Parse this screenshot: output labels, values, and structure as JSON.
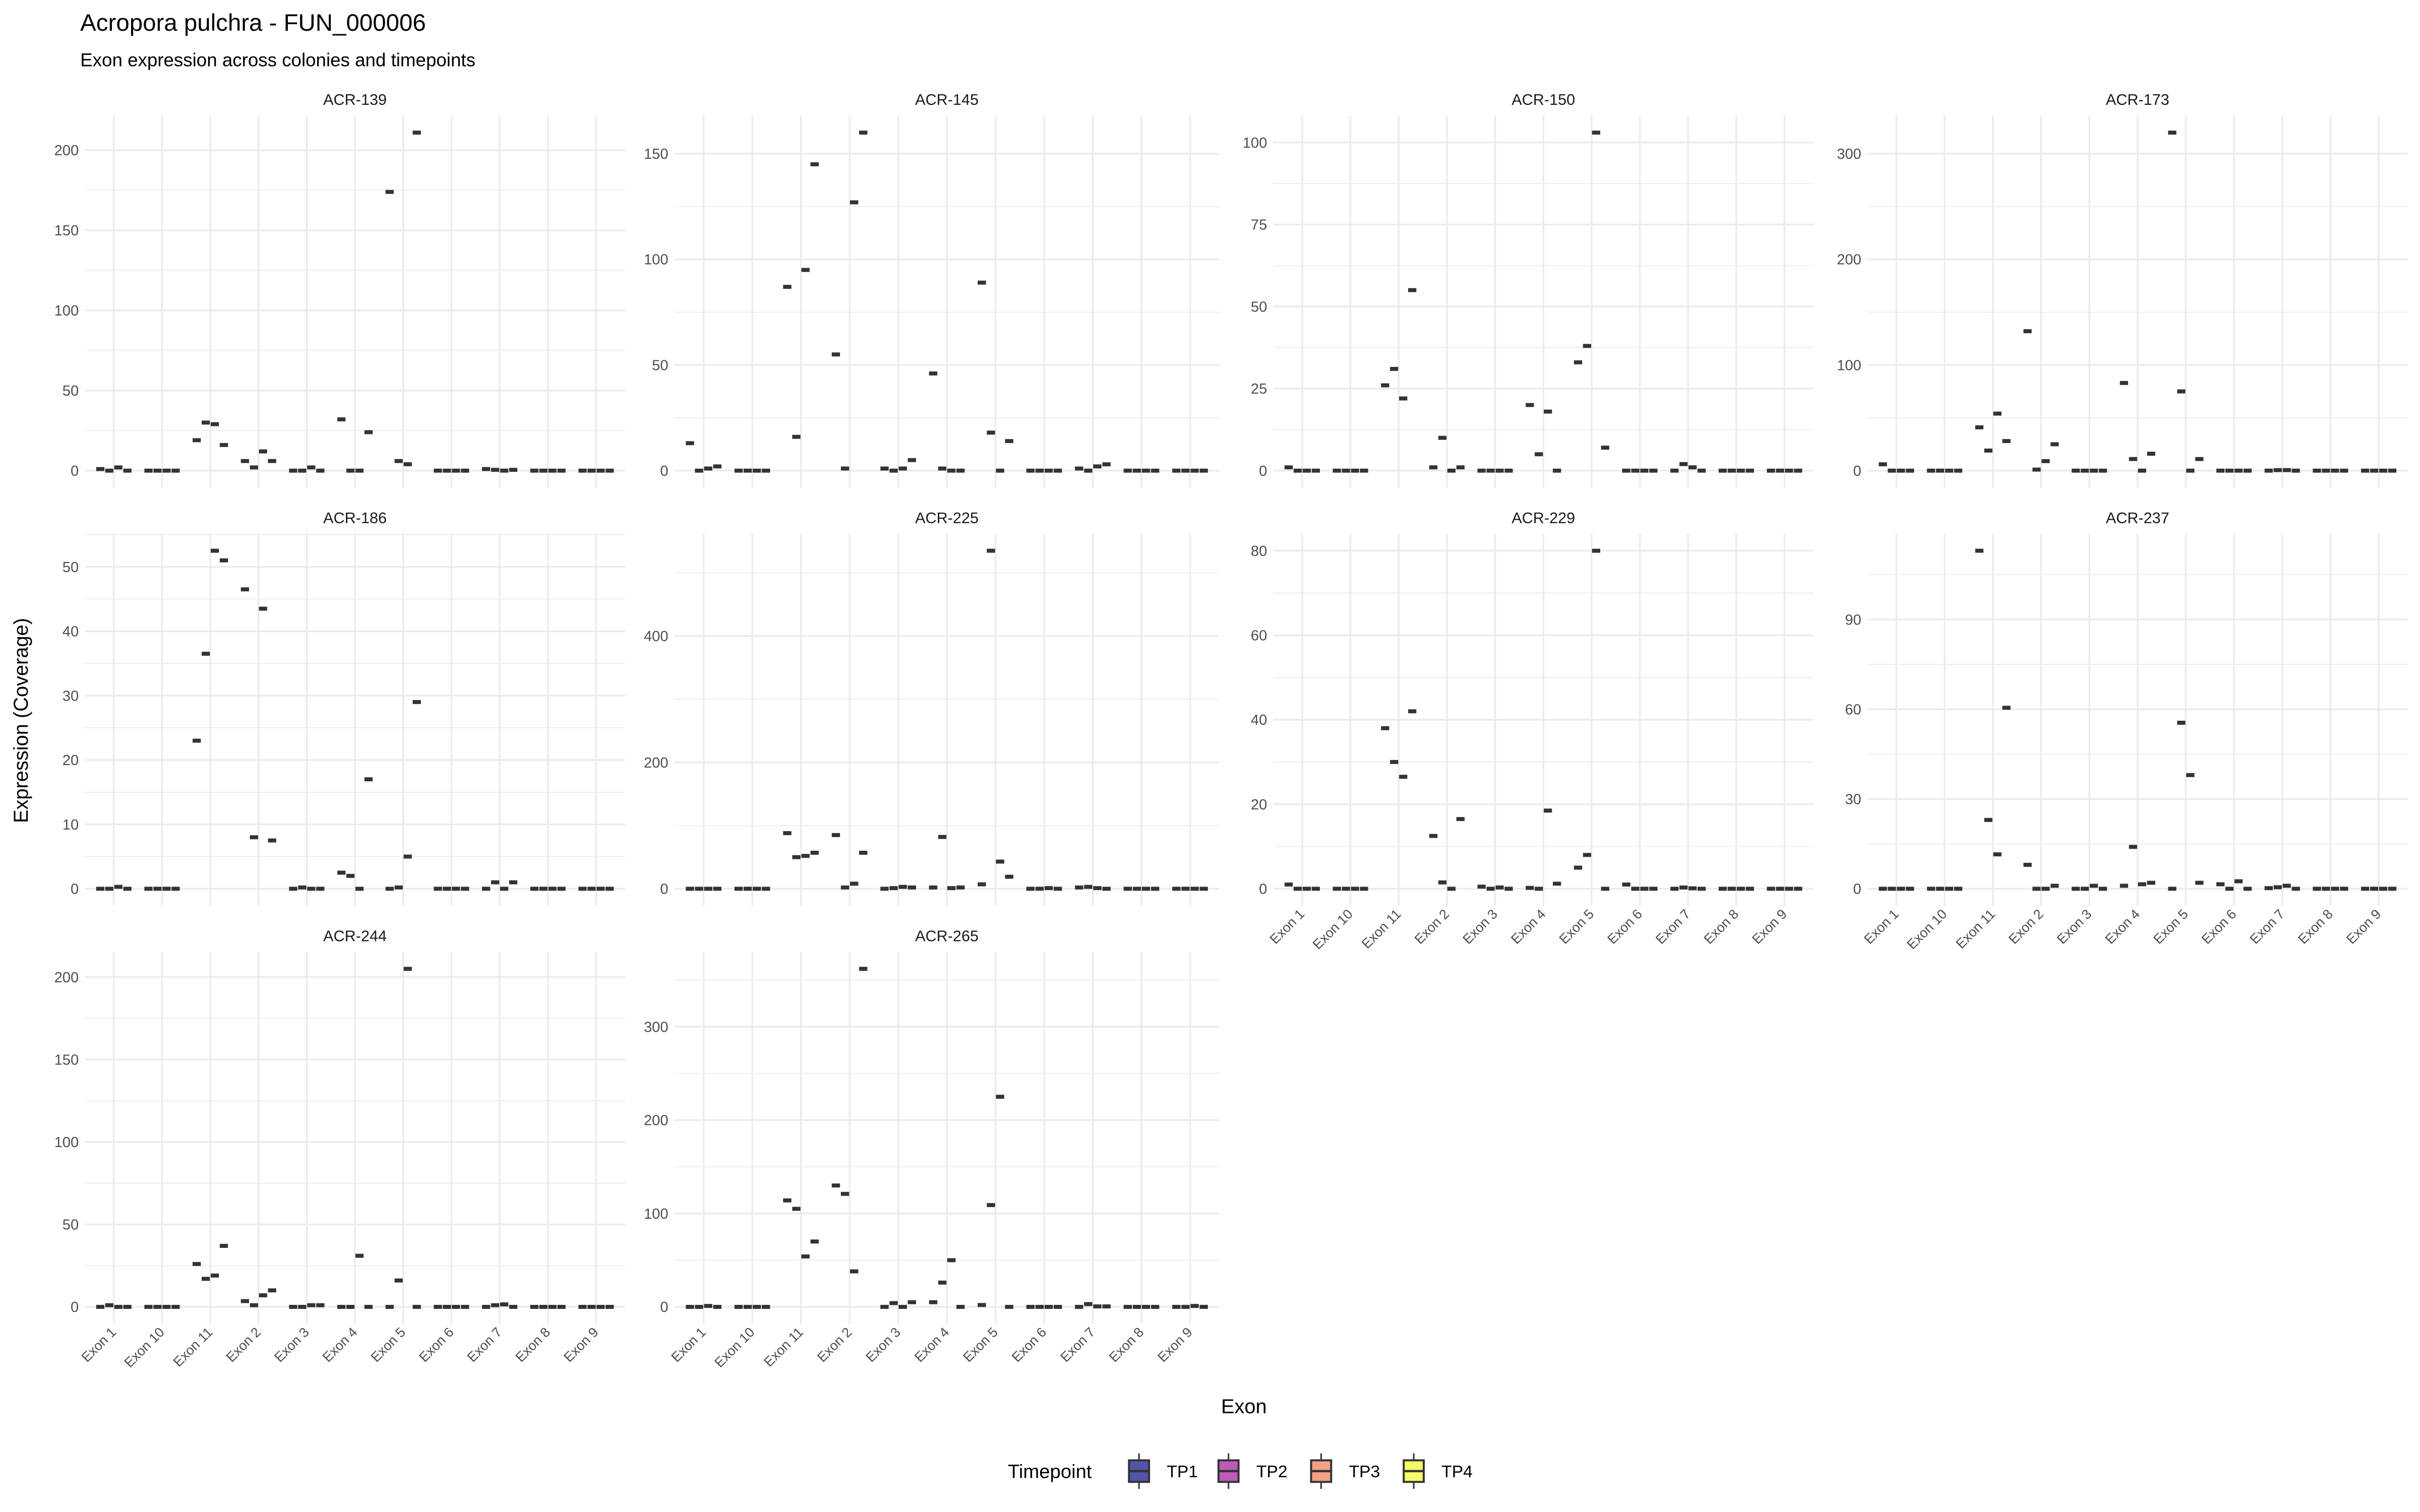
{
  "chart_data": {
    "type": "boxplot",
    "title": "Acropora pulchra - FUN_000006",
    "subtitle": "Exon expression across colonies and timepoints",
    "xlabel": "Exon",
    "ylabel": "Expression (Coverage)",
    "categories": [
      "Exon 1",
      "Exon 10",
      "Exon 11",
      "Exon 2",
      "Exon 3",
      "Exon 4",
      "Exon 5",
      "Exon 6",
      "Exon 7",
      "Exon 8",
      "Exon 9"
    ],
    "legend": {
      "title": "Timepoint",
      "placement": "bottom",
      "entries": [
        "TP1",
        "TP2",
        "TP3",
        "TP4"
      ],
      "colors": [
        "#5254a8",
        "#bc5cb8",
        "#f2a185",
        "#f5fb68"
      ]
    },
    "grid": true,
    "values_layout": "each panel: values[exon][timepoint TP1..TP4]",
    "panels": [
      {
        "name": "ACR-139",
        "ylim": [
          0,
          211
        ],
        "yticks": [
          "0",
          "50",
          "100",
          "150",
          "200"
        ],
        "ytick_values": [
          0,
          50,
          100,
          150,
          200
        ],
        "values": [
          [
            1,
            0,
            2,
            0
          ],
          [
            0,
            0,
            0,
            0
          ],
          [
            19,
            30,
            29,
            16
          ],
          [
            6,
            2,
            12,
            6
          ],
          [
            0,
            0,
            2,
            0
          ],
          [
            32,
            0,
            0,
            24
          ],
          [
            174,
            6,
            4,
            211
          ],
          [
            0,
            0,
            0,
            0
          ],
          [
            1,
            0.5,
            0,
            0.5
          ],
          [
            0,
            0,
            0,
            0
          ],
          [
            0,
            0,
            0,
            0
          ]
        ]
      },
      {
        "name": "ACR-145",
        "ylim": [
          0,
          160
        ],
        "yticks": [
          "0",
          "50",
          "100",
          "150"
        ],
        "ytick_values": [
          0,
          50,
          100,
          150
        ],
        "values": [
          [
            13,
            0,
            1,
            2
          ],
          [
            0,
            0,
            0,
            0
          ],
          [
            87,
            16,
            95,
            145
          ],
          [
            55,
            1,
            127,
            160
          ],
          [
            1,
            0,
            1,
            5
          ],
          [
            46,
            1,
            0,
            0
          ],
          [
            89,
            18,
            0,
            14
          ],
          [
            0,
            0,
            0,
            0
          ],
          [
            1,
            0,
            2,
            3
          ],
          [
            0,
            0,
            0,
            0
          ],
          [
            0,
            0,
            0,
            0
          ]
        ]
      },
      {
        "name": "ACR-150",
        "ylim": [
          0,
          103
        ],
        "yticks": [
          "0",
          "25",
          "50",
          "75",
          "100"
        ],
        "ytick_values": [
          0,
          25,
          50,
          75,
          100
        ],
        "values": [
          [
            1,
            0,
            0,
            0
          ],
          [
            0,
            0,
            0,
            0
          ],
          [
            26,
            31,
            22,
            55
          ],
          [
            1,
            10,
            0,
            1
          ],
          [
            0,
            0,
            0,
            0
          ],
          [
            20,
            5,
            18,
            0
          ],
          [
            33,
            38,
            103,
            7
          ],
          [
            0,
            0,
            0,
            0
          ],
          [
            0,
            2,
            1,
            0
          ],
          [
            0,
            0,
            0,
            0
          ],
          [
            0,
            0,
            0,
            0
          ]
        ]
      },
      {
        "name": "ACR-173",
        "ylim": [
          0,
          320
        ],
        "yticks": [
          "0",
          "100",
          "200",
          "300"
        ],
        "ytick_values": [
          0,
          100,
          200,
          300
        ],
        "values": [
          [
            6,
            0,
            0,
            0
          ],
          [
            0,
            0,
            0,
            0
          ],
          [
            41,
            19,
            54,
            28
          ],
          [
            132,
            1,
            9,
            25
          ],
          [
            0,
            0,
            0,
            0
          ],
          [
            83,
            11,
            0,
            16
          ],
          [
            320,
            75,
            0,
            11
          ],
          [
            0,
            0,
            0,
            0
          ],
          [
            0,
            0.5,
            0.5,
            0
          ],
          [
            0,
            0,
            0,
            0
          ],
          [
            0,
            0,
            0,
            0
          ]
        ]
      },
      {
        "name": "ACR-186",
        "ylim": [
          0,
          52.5
        ],
        "yticks": [
          "0",
          "10",
          "20",
          "30",
          "40",
          "50"
        ],
        "ytick_values": [
          0,
          10,
          20,
          30,
          40,
          50
        ],
        "values": [
          [
            0,
            0,
            0.3,
            0
          ],
          [
            0,
            0,
            0,
            0
          ],
          [
            23,
            36.5,
            52.5,
            51
          ],
          [
            46.5,
            8,
            43.5,
            7.5
          ],
          [
            0,
            0.2,
            0,
            0
          ],
          [
            2.5,
            2,
            0,
            17
          ],
          [
            0,
            0.2,
            5,
            29
          ],
          [
            0,
            0,
            0,
            0
          ],
          [
            0,
            1,
            0,
            1
          ],
          [
            0,
            0,
            0,
            0
          ],
          [
            0,
            0,
            0,
            0
          ]
        ]
      },
      {
        "name": "ACR-225",
        "ylim": [
          0,
          535
        ],
        "yticks": [
          "0",
          "200",
          "400"
        ],
        "ytick_values": [
          0,
          200,
          400
        ],
        "values": [
          [
            0,
            0,
            0,
            0
          ],
          [
            0,
            0,
            0,
            0
          ],
          [
            88,
            50,
            52,
            57
          ],
          [
            85,
            2,
            8,
            57
          ],
          [
            0,
            1,
            3,
            2
          ],
          [
            2,
            82,
            1,
            2
          ],
          [
            7,
            535,
            43,
            19
          ],
          [
            0,
            0,
            1,
            0
          ],
          [
            2,
            3,
            1,
            0
          ],
          [
            0,
            0,
            0,
            0
          ],
          [
            0,
            0,
            0,
            0
          ]
        ]
      },
      {
        "name": "ACR-229",
        "ylim": [
          0,
          80
        ],
        "yticks": [
          "0",
          "20",
          "40",
          "60",
          "80"
        ],
        "ytick_values": [
          0,
          20,
          40,
          60,
          80
        ],
        "values": [
          [
            1,
            0,
            0,
            0
          ],
          [
            0,
            0,
            0,
            0
          ],
          [
            38,
            30,
            26.5,
            42
          ],
          [
            12.5,
            1.5,
            0,
            16.5
          ],
          [
            0.5,
            0,
            0.3,
            0
          ],
          [
            0.2,
            0,
            18.5,
            1.2
          ],
          [
            5,
            8,
            80,
            0
          ],
          [
            1,
            0,
            0,
            0
          ],
          [
            0,
            0.3,
            0.1,
            0
          ],
          [
            0,
            0,
            0,
            0
          ],
          [
            0,
            0,
            0,
            0
          ]
        ]
      },
      {
        "name": "ACR-237",
        "ylim": [
          0,
          113
        ],
        "yticks": [
          "0",
          "30",
          "60",
          "90"
        ],
        "ytick_values": [
          0,
          30,
          60,
          90
        ],
        "values": [
          [
            0,
            0,
            0,
            0
          ],
          [
            0,
            0,
            0,
            0
          ],
          [
            113,
            23,
            11.5,
            60.5
          ],
          [
            8,
            0,
            0,
            1
          ],
          [
            0,
            0,
            1,
            0
          ],
          [
            1,
            14,
            1.5,
            2
          ],
          [
            0,
            55.5,
            38,
            2
          ],
          [
            1.5,
            0,
            2.5,
            0
          ],
          [
            0.2,
            0.5,
            1,
            0
          ],
          [
            0,
            0,
            0,
            0
          ],
          [
            0,
            0,
            0,
            0
          ]
        ]
      },
      {
        "name": "ACR-244",
        "ylim": [
          0,
          205
        ],
        "yticks": [
          "0",
          "50",
          "100",
          "150",
          "200"
        ],
        "ytick_values": [
          0,
          50,
          100,
          150,
          200
        ],
        "values": [
          [
            0,
            1,
            0,
            0
          ],
          [
            0,
            0,
            0,
            0
          ],
          [
            26,
            17,
            19,
            37
          ],
          [
            3.5,
            1,
            7,
            10
          ],
          [
            0,
            0,
            1,
            1
          ],
          [
            0,
            0,
            31,
            0
          ],
          [
            0,
            16,
            205,
            0
          ],
          [
            0,
            0,
            0,
            0
          ],
          [
            0,
            1,
            1.5,
            0
          ],
          [
            0,
            0,
            0,
            0
          ],
          [
            0,
            0,
            0,
            0
          ]
        ]
      },
      {
        "name": "ACR-265",
        "ylim": [
          0,
          362
        ],
        "yticks": [
          "0",
          "100",
          "200",
          "300"
        ],
        "ytick_values": [
          0,
          100,
          200,
          300
        ],
        "values": [
          [
            0,
            0,
            1,
            0
          ],
          [
            0,
            0,
            0,
            0
          ],
          [
            114,
            105,
            54,
            70
          ],
          [
            130,
            121,
            38,
            362
          ],
          [
            0,
            4,
            0,
            5
          ],
          [
            5,
            26,
            50,
            0
          ],
          [
            2,
            109,
            225,
            0
          ],
          [
            0,
            0,
            0,
            0
          ],
          [
            0,
            3,
            0.5,
            0.5
          ],
          [
            0,
            0,
            0,
            0
          ],
          [
            0,
            0,
            1,
            0
          ]
        ]
      }
    ]
  }
}
